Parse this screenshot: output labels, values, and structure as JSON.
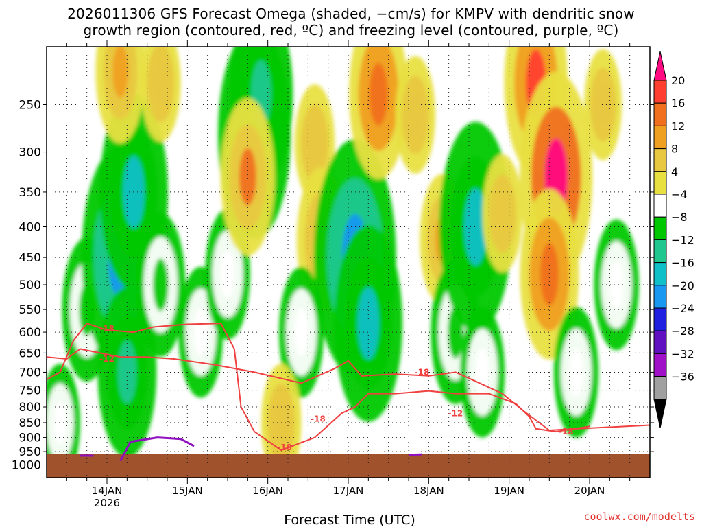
{
  "title_line1": "2026011306 GFS Forecast Omega (shaded, −cm/s) for KMPV with dendritic snow",
  "title_line2": "growth region (contoured, red, ºC) and freezing level (contoured, purple, ºC)",
  "credit": "coolwx.com/modelts",
  "chart_data": {
    "type": "heatmap",
    "title": "2026011306 GFS Forecast Omega (shaded, −cm/s) for KMPV with dendritic snow growth region (contoured, red, ºC) and freezing level (contoured, purple, ºC)",
    "xlabel": "Forecast Time (UTC)",
    "ylabel": "",
    "y_scale": "log",
    "y_reversed": true,
    "ylim": [
      200,
      1050
    ],
    "y_ticks": [
      250,
      300,
      350,
      400,
      450,
      500,
      550,
      600,
      650,
      700,
      750,
      800,
      850,
      900,
      950,
      1000
    ],
    "x_range_hours": [
      0,
      180
    ],
    "x_ticks": [
      {
        "hour": 18,
        "label": "14JAN",
        "sublabel": "2026"
      },
      {
        "hour": 42,
        "label": "15JAN",
        "sublabel": ""
      },
      {
        "hour": 66,
        "label": "16JAN",
        "sublabel": ""
      },
      {
        "hour": 90,
        "label": "17JAN",
        "sublabel": ""
      },
      {
        "hour": 114,
        "label": "18JAN",
        "sublabel": ""
      },
      {
        "hour": 138,
        "label": "19JAN",
        "sublabel": ""
      },
      {
        "hour": 162,
        "label": "20JAN",
        "sublabel": ""
      }
    ],
    "colorbar": {
      "labels": [
        "20",
        "16",
        "12",
        "8",
        "4",
        "−4",
        "−8",
        "−12",
        "−16",
        "−20",
        "−24",
        "−28",
        "−32",
        "−36"
      ],
      "levels": [
        20,
        16,
        12,
        8,
        4,
        -4,
        -8,
        -12,
        -16,
        -20,
        -24,
        -28,
        -32,
        -36
      ],
      "colors": [
        "#ff0a80",
        "#ff4030",
        "#f07020",
        "#f0a020",
        "#e8c840",
        "#e8e040",
        "#ffffff",
        "#00c800",
        "#20c890",
        "#10c0c8",
        "#1898f0",
        "#2020e0",
        "#6010c0",
        "#a010c8",
        "#a0a0a0",
        "#000000"
      ]
    },
    "omega_regions": [
      {
        "hour": 4,
        "p": 850,
        "value": -6
      },
      {
        "hour": 12,
        "p": 550,
        "value": -10
      },
      {
        "hour": 22,
        "p": 450,
        "value": -22
      },
      {
        "hour": 26,
        "p": 350,
        "value": -18
      },
      {
        "hour": 24,
        "p": 700,
        "value": -14
      },
      {
        "hour": 34,
        "p": 500,
        "value": -10
      },
      {
        "hour": 46,
        "p": 600,
        "value": -8
      },
      {
        "hour": 22,
        "p": 220,
        "value": 10
      },
      {
        "hour": 34,
        "p": 230,
        "value": 6
      },
      {
        "hour": 54,
        "p": 480,
        "value": -8
      },
      {
        "hour": 62,
        "p": 280,
        "value": -20
      },
      {
        "hour": 64,
        "p": 240,
        "value": -16
      },
      {
        "hour": 60,
        "p": 330,
        "value": 12
      },
      {
        "hour": 80,
        "p": 290,
        "value": 6
      },
      {
        "hour": 82,
        "p": 420,
        "value": 10
      },
      {
        "hour": 76,
        "p": 600,
        "value": -8
      },
      {
        "hour": 70,
        "p": 850,
        "value": 6
      },
      {
        "hour": 92,
        "p": 450,
        "value": -24
      },
      {
        "hour": 96,
        "p": 580,
        "value": -18
      },
      {
        "hour": 99,
        "p": 240,
        "value": 14
      },
      {
        "hour": 110,
        "p": 260,
        "value": 6
      },
      {
        "hour": 118,
        "p": 420,
        "value": 8
      },
      {
        "hour": 122,
        "p": 600,
        "value": -10
      },
      {
        "hour": 128,
        "p": 400,
        "value": -20
      },
      {
        "hour": 130,
        "p": 700,
        "value": -8
      },
      {
        "hour": 136,
        "p": 380,
        "value": 6
      },
      {
        "hour": 146,
        "p": 230,
        "value": 16
      },
      {
        "hour": 152,
        "p": 330,
        "value": 20
      },
      {
        "hour": 150,
        "p": 480,
        "value": 14
      },
      {
        "hour": 158,
        "p": 700,
        "value": -8
      },
      {
        "hour": 166,
        "p": 250,
        "value": 5
      },
      {
        "hour": 170,
        "p": 500,
        "value": -8
      }
    ],
    "dgz_contours": [
      {
        "label": "-12",
        "points": [
          [
            0,
            660
          ],
          [
            6,
            665
          ],
          [
            10,
            640
          ],
          [
            16,
            650
          ],
          [
            22,
            660
          ],
          [
            30,
            660
          ],
          [
            38,
            665
          ],
          [
            50,
            680
          ],
          [
            62,
            700
          ],
          [
            76,
            730
          ],
          [
            86,
            690
          ],
          [
            90,
            670
          ],
          [
            94,
            710
          ],
          [
            104,
            705
          ],
          [
            114,
            710
          ],
          [
            122,
            700
          ],
          [
            128,
            725
          ],
          [
            136,
            760
          ],
          [
            142,
            810
          ],
          [
            150,
            875
          ],
          [
            162,
            868
          ],
          [
            180,
            858
          ]
        ],
        "label_points": [
          [
            18,
            665
          ],
          [
            122,
            820
          ]
        ]
      },
      {
        "label": "-18",
        "points": [
          [
            0,
            720
          ],
          [
            4,
            700
          ],
          [
            8,
            620
          ],
          [
            12,
            580
          ],
          [
            18,
            595
          ],
          [
            26,
            600
          ],
          [
            32,
            588
          ],
          [
            42,
            582
          ],
          [
            52,
            580
          ],
          [
            56,
            640
          ],
          [
            58,
            800
          ],
          [
            62,
            880
          ],
          [
            70,
            945
          ],
          [
            80,
            900
          ],
          [
            88,
            820
          ],
          [
            92,
            800
          ],
          [
            96,
            760
          ],
          [
            104,
            760
          ],
          [
            114,
            752
          ],
          [
            122,
            760
          ],
          [
            132,
            760
          ],
          [
            140,
            790
          ],
          [
            144,
            830
          ],
          [
            146,
            870
          ],
          [
            152,
            880
          ],
          [
            162,
            862
          ]
        ],
        "label_points": [
          [
            18,
            592
          ],
          [
            81,
            838
          ],
          [
            71,
            935
          ],
          [
            112,
            700
          ],
          [
            155,
            880
          ]
        ]
      }
    ],
    "freezing_level": [
      {
        "points": [
          [
            10,
            965
          ],
          [
            14,
            965
          ]
        ]
      },
      {
        "points": [
          [
            22,
            985
          ],
          [
            25,
            915
          ],
          [
            33,
            900
          ],
          [
            40,
            905
          ],
          [
            44,
            930
          ]
        ]
      },
      {
        "points": [
          [
            108,
            962
          ],
          [
            112,
            960
          ]
        ]
      }
    ]
  }
}
